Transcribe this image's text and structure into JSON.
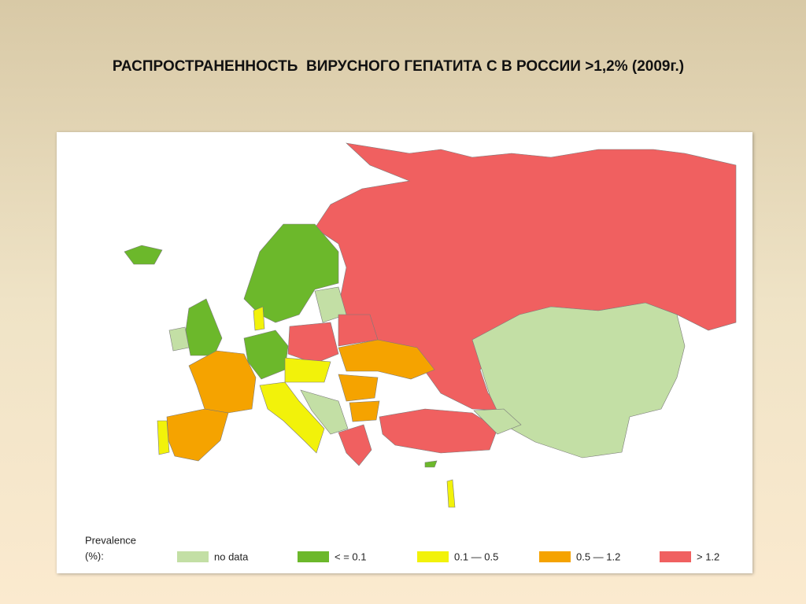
{
  "title": "РАСПРОСТРАНЕННОСТЬ  ВИРУСНОГО ГЕПАТИТА С В РОССИИ >1,2% (2009г.)",
  "legend": {
    "title": [
      "Prevalence",
      "(%):"
    ],
    "items": [
      {
        "label": "no data",
        "color": "#c3dfa5"
      },
      {
        "label": "< = 0.1",
        "color": "#6cb82b"
      },
      {
        "label": "0.1 — 0.5",
        "color": "#f2f20a"
      },
      {
        "label": "0.5 — 1.2",
        "color": "#f5a300"
      },
      {
        "label": "> 1.2",
        "color": "#f06060"
      }
    ]
  }
}
